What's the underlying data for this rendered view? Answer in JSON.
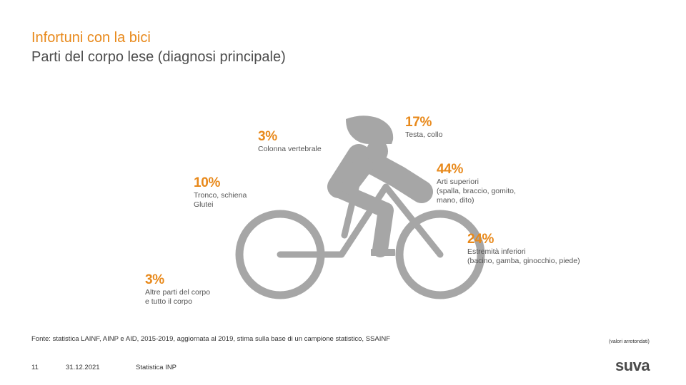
{
  "header": {
    "title": "Infortuni con la bici",
    "subtitle": "Parti del corpo lese (diagnosi principale)"
  },
  "chart_data": {
    "type": "infographic",
    "title": "Infortuni con la bici",
    "subtitle": "Parti del corpo lese (diagnosi principale)",
    "unit": "%",
    "colors": {
      "accent": "#e8891b",
      "figure": "#a6a6a6",
      "text": "#555555"
    },
    "items": [
      {
        "id": "testa",
        "pct": "17%",
        "value": 17,
        "label": "Testa, collo"
      },
      {
        "id": "colonna",
        "pct": "3%",
        "value": 3,
        "label": "Colonna vertebrale"
      },
      {
        "id": "arti-superiori",
        "pct": "44%",
        "value": 44,
        "label": "Arti superiori\n(spalla, braccio, gomito,\nmano, dito)"
      },
      {
        "id": "tronco",
        "pct": "10%",
        "value": 10,
        "label": "Tronco, schiena\nGlutei"
      },
      {
        "id": "estremita-inferiori",
        "pct": "24%",
        "value": 24,
        "label": "Estremità inferiori\n(bacino, gamba, ginocchio, piede)"
      },
      {
        "id": "altre",
        "pct": "3%",
        "value": 3,
        "label": "Altre parti del corpo\ne tutto il corpo"
      }
    ]
  },
  "source": "Fonte: statistica LAINF, AINP e AID, 2015-2019, aggiornata al 2019, stima sulla base di un campione statistico, SSAINF",
  "rounded_note": "(valori arrotondati)",
  "footer": {
    "page": "11",
    "date": "31.12.2021",
    "label": "Statistica INP",
    "logo": "suva"
  }
}
